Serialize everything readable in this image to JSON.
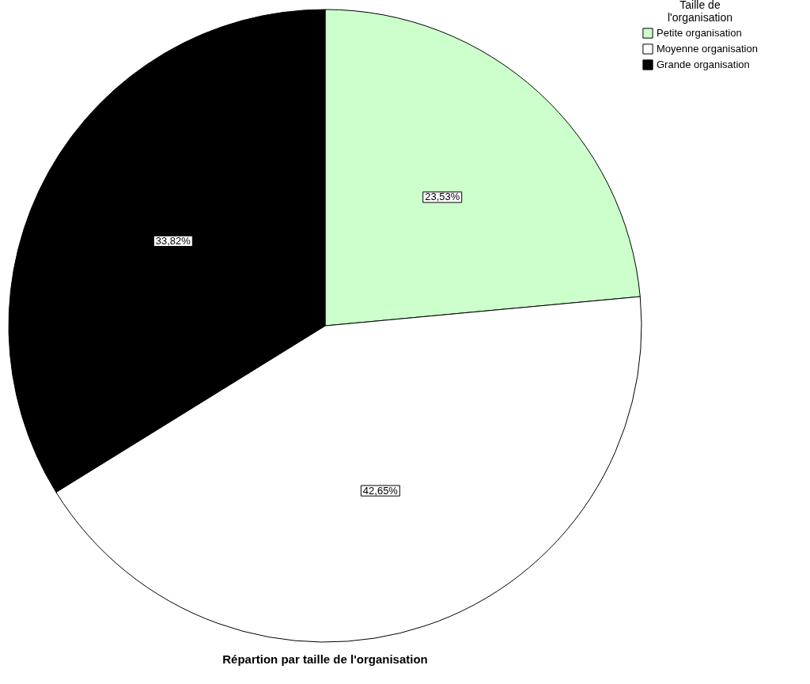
{
  "chart_data": {
    "type": "pie",
    "title": "Répartion par taille de l'organisation",
    "legend_title": "Taille de l'organisation",
    "categories": [
      "Petite organisation",
      "Moyenne organisation",
      "Grande organisation"
    ],
    "values": [
      23.53,
      42.65,
      33.82
    ],
    "colors": [
      "#ccffcc",
      "#ffffff",
      "#000000"
    ],
    "value_labels": [
      "23,53%",
      "42,65%",
      "33,82%"
    ],
    "legend": "top right"
  }
}
